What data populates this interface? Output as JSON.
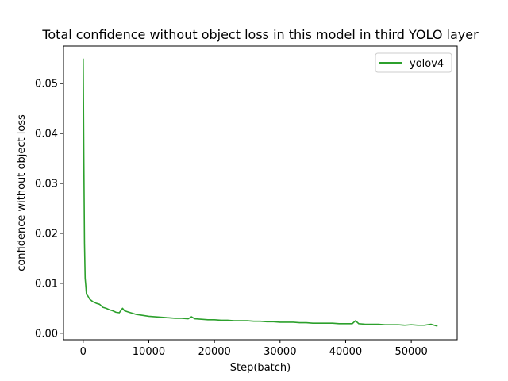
{
  "chart_data": {
    "type": "line",
    "title": "Total confidence without object loss in this model in third YOLO layer",
    "xlabel": "Step(batch)",
    "ylabel": "confidence without object loss",
    "xlim": [
      -3000,
      57000
    ],
    "ylim": [
      -0.0013,
      0.0575
    ],
    "xticks": [
      0,
      10000,
      20000,
      30000,
      40000,
      50000
    ],
    "xtick_labels": [
      "0",
      "10000",
      "20000",
      "30000",
      "40000",
      "50000"
    ],
    "yticks": [
      0.0,
      0.01,
      0.02,
      0.03,
      0.04,
      0.05
    ],
    "ytick_labels": [
      "0.00",
      "0.01",
      "0.02",
      "0.03",
      "0.04",
      "0.05"
    ],
    "grid": false,
    "legend_position": "top-right",
    "series": [
      {
        "name": "yolov4",
        "color": "#2ca02c",
        "x": [
          0,
          100,
          200,
          300,
          400,
          500,
          700,
          1000,
          1500,
          2000,
          2500,
          3000,
          3500,
          4000,
          4500,
          5000,
          5500,
          6000,
          6300,
          7000,
          8000,
          9000,
          10000,
          11000,
          12000,
          13000,
          14000,
          15000,
          16000,
          16500,
          17000,
          18000,
          19000,
          20000,
          21000,
          22000,
          23000,
          24000,
          25000,
          26000,
          27000,
          28000,
          29000,
          30000,
          31000,
          32000,
          33000,
          34000,
          35000,
          36000,
          37000,
          38000,
          39000,
          40000,
          41000,
          41500,
          42000,
          43000,
          44000,
          45000,
          46000,
          47000,
          48000,
          49000,
          50000,
          51000,
          52000,
          53000,
          54000
        ],
        "y": [
          0.055,
          0.035,
          0.018,
          0.011,
          0.0095,
          0.0078,
          0.0075,
          0.0068,
          0.0063,
          0.006,
          0.0058,
          0.0052,
          0.005,
          0.0047,
          0.0045,
          0.0042,
          0.0041,
          0.005,
          0.0045,
          0.0042,
          0.0038,
          0.0036,
          0.0034,
          0.0033,
          0.0032,
          0.0031,
          0.003,
          0.003,
          0.0029,
          0.0033,
          0.0029,
          0.0028,
          0.0027,
          0.0027,
          0.0026,
          0.0026,
          0.0025,
          0.0025,
          0.0025,
          0.0024,
          0.0024,
          0.0023,
          0.0023,
          0.0022,
          0.0022,
          0.0022,
          0.0021,
          0.0021,
          0.002,
          0.002,
          0.002,
          0.002,
          0.0019,
          0.0019,
          0.0019,
          0.0025,
          0.0019,
          0.0018,
          0.0018,
          0.0018,
          0.0017,
          0.0017,
          0.0017,
          0.0016,
          0.0017,
          0.0016,
          0.0016,
          0.0018,
          0.0014
        ]
      }
    ]
  }
}
